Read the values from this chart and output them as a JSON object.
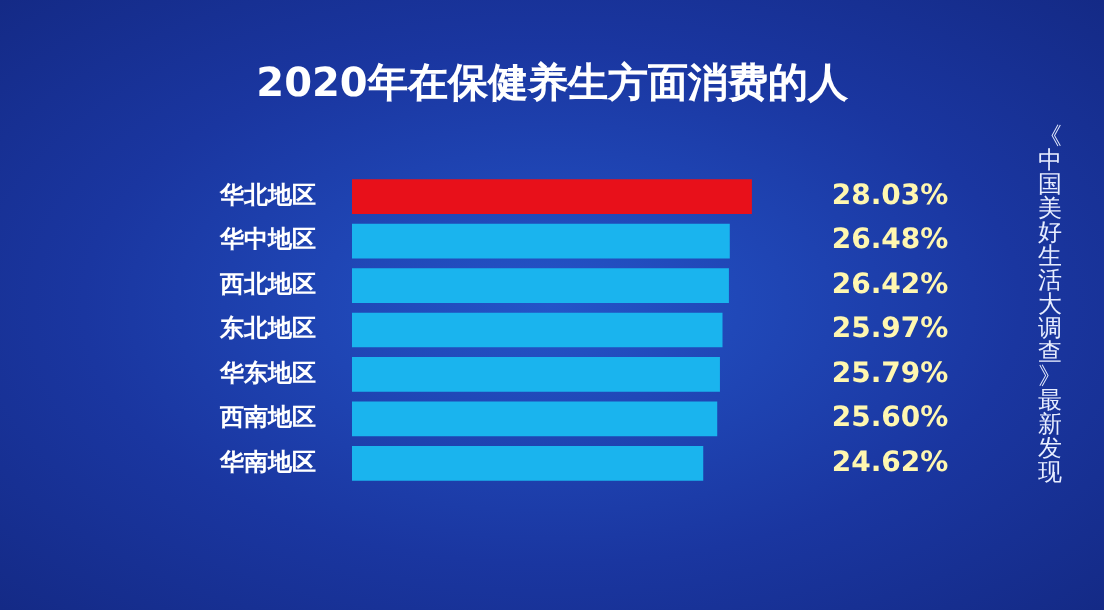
{
  "chart_data": {
    "type": "bar",
    "orientation": "horizontal",
    "title": "2020年在保健养生方面消费的人",
    "categories": [
      "华北地区",
      "华中地区",
      "西北地区",
      "东北地区",
      "华东地区",
      "西南地区",
      "华南地区"
    ],
    "values": [
      28.03,
      26.48,
      26.42,
      25.97,
      25.79,
      25.6,
      24.62
    ],
    "colors": [
      "#e8101a",
      "#1ab4ee",
      "#1ab4ee",
      "#1ab4ee",
      "#1ab4ee",
      "#1ab4ee",
      "#1ab4ee"
    ],
    "value_labels": [
      "28.03%",
      "26.48%",
      "26.42%",
      "25.97%",
      "25.79%",
      "25.60%",
      "24.62%"
    ],
    "tick_labels": "y",
    "legend": false,
    "annotations": [
      "《中国美好生活大调查》最新发现"
    ]
  }
}
